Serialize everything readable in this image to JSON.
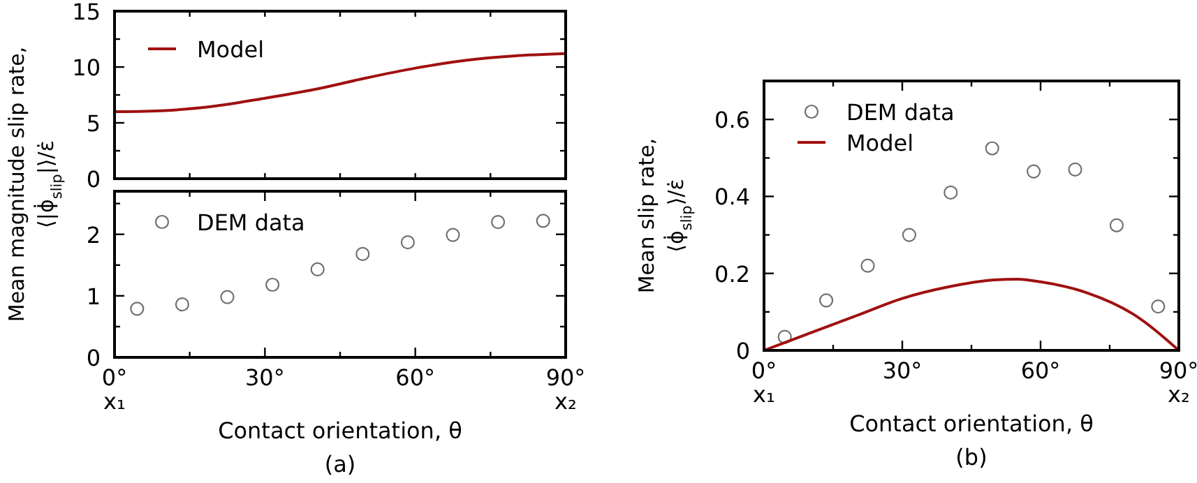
{
  "chart_data": [
    {
      "type": "line",
      "ylabel": "Mean magnitude slip rate,\n⟨|ϕ̇$_{slip}$|⟩/ε̇",
      "xlim": [
        0,
        90
      ],
      "ylim": [
        0,
        15
      ],
      "tick_labels": "y",
      "legend": "top left",
      "xticks": [
        {
          "value": 0,
          "label": null
        },
        {
          "value": 15,
          "label": null
        },
        {
          "value": 30,
          "label": null
        },
        {
          "value": 45,
          "label": null
        },
        {
          "value": 60,
          "label": null
        },
        {
          "value": 75,
          "label": null
        },
        {
          "value": 90,
          "label": null
        }
      ],
      "yticks": [
        0,
        {
          "value": 2.5,
          "label": null
        },
        5,
        {
          "value": 7.5,
          "label": null
        },
        10,
        {
          "value": 12.5,
          "label": null
        },
        15
      ],
      "series": [
        {
          "name": "Model",
          "color": "#a01010",
          "x": [
            0,
            10,
            20,
            30,
            40,
            50,
            60,
            70,
            80,
            90
          ],
          "values": [
            6.0,
            6.1,
            6.5,
            7.2,
            8.0,
            9.0,
            9.9,
            10.6,
            11.0,
            11.2
          ]
        }
      ]
    },
    {
      "type": "scatter",
      "xlabel": "Contact orientation, θ",
      "xlim": [
        0,
        90
      ],
      "ylim": [
        0,
        2.7
      ],
      "legend": "top left",
      "xticks": [
        {
          "value": 0,
          "label": "0°"
        },
        {
          "value": 15,
          "label": null
        },
        {
          "value": 30,
          "label": "30°"
        },
        {
          "value": 45,
          "label": null
        },
        {
          "value": 60,
          "label": "60°"
        },
        {
          "value": 75,
          "label": null
        },
        {
          "value": 90,
          "label": "90°"
        }
      ],
      "yticks": [
        0,
        {
          "value": 0.5,
          "label": null
        },
        1,
        {
          "value": 1.5,
          "label": null
        },
        2,
        {
          "value": 2.5,
          "label": null
        }
      ],
      "annotations": [
        "(a)",
        "x₁",
        "x₂"
      ],
      "series": [
        {
          "name": "DEM data",
          "marker": "circle",
          "color": "#707070",
          "x": [
            4.5,
            13.5,
            22.5,
            31.5,
            40.5,
            49.5,
            58.5,
            67.5,
            76.5,
            85.5
          ],
          "values": [
            0.79,
            0.86,
            0.98,
            1.18,
            1.43,
            1.68,
            1.87,
            1.99,
            2.2,
            2.22
          ]
        }
      ]
    },
    {
      "type": "scatter",
      "ylabel": "Mean slip rate,\n⟨ϕ̇$_{slip}$⟩/ε̇",
      "xlabel": "Contact orientation, θ",
      "xlim": [
        0,
        90
      ],
      "ylim": [
        0,
        0.7
      ],
      "legend": "top left",
      "xticks": [
        {
          "value": 0,
          "label": "0°"
        },
        {
          "value": 15,
          "label": null
        },
        {
          "value": 30,
          "label": "30°"
        },
        {
          "value": 45,
          "label": null
        },
        {
          "value": 60,
          "label": "60°"
        },
        {
          "value": 75,
          "label": null
        },
        {
          "value": 90,
          "label": "90°"
        }
      ],
      "yticks": [
        0,
        {
          "value": 0.1,
          "label": null
        },
        0.2,
        {
          "value": 0.3,
          "label": null
        },
        0.4,
        {
          "value": 0.5,
          "label": null
        },
        0.6
      ],
      "annotations": [
        "(b)",
        "x₁",
        "x₂"
      ],
      "series": [
        {
          "name": "DEM data",
          "marker": "circle",
          "color": "#707070",
          "x": [
            4.5,
            13.5,
            22.5,
            31.5,
            40.5,
            49.5,
            58.5,
            67.5,
            76.5,
            85.5
          ],
          "values": [
            0.035,
            0.13,
            0.22,
            0.3,
            0.41,
            0.525,
            0.465,
            0.47,
            0.325,
            0.114
          ]
        },
        {
          "name": "Model",
          "type": "line",
          "color": "#a01010",
          "x": [
            0,
            10,
            20,
            30,
            40,
            50,
            55,
            60,
            70,
            80,
            90
          ],
          "values": [
            0,
            0.045,
            0.09,
            0.135,
            0.165,
            0.183,
            0.185,
            0.178,
            0.15,
            0.095,
            0
          ]
        }
      ]
    }
  ]
}
